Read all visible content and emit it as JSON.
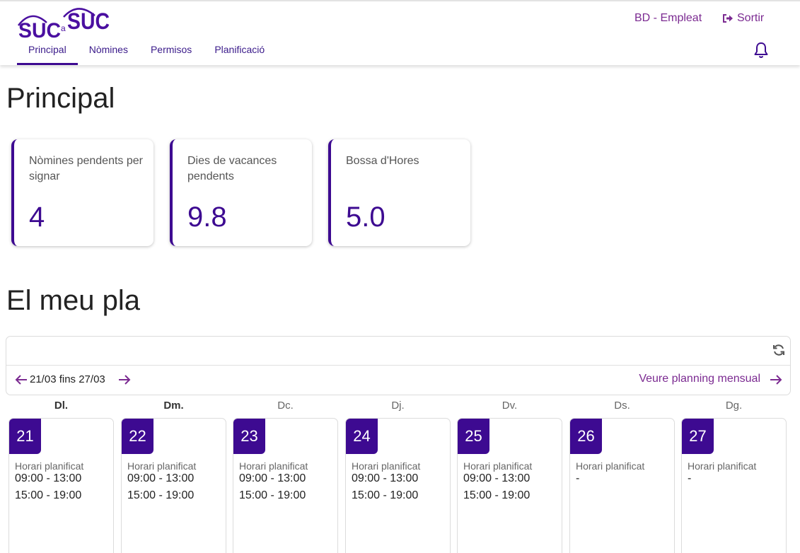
{
  "header": {
    "logo_text_small": "SUC",
    "logo_text_connector": "a",
    "logo_text_large": "SUC",
    "user": "BD - Empleat",
    "logout": "Sortir",
    "nav": [
      {
        "label": "Principal",
        "active": true
      },
      {
        "label": "Nòmines",
        "active": false
      },
      {
        "label": "Permisos",
        "active": false
      },
      {
        "label": "Planificació",
        "active": false
      }
    ]
  },
  "page_title": "Principal",
  "cards": [
    {
      "label": "Nòmines pendents per signar",
      "value": "4"
    },
    {
      "label": "Dies de vacances pendents",
      "value": "9.8"
    },
    {
      "label": "Bossa d'Hores",
      "value": "5.0"
    }
  ],
  "planner": {
    "title": "El meu pla",
    "range": "21/03 fins 27/03",
    "monthly_link": "Veure planning mensual",
    "days": [
      {
        "name": "Dl.",
        "num": "21",
        "label": "Horari planificat",
        "slots": [
          "09:00 - 13:00",
          "15:00 - 19:00"
        ],
        "strong": true
      },
      {
        "name": "Dm.",
        "num": "22",
        "label": "Horari planificat",
        "slots": [
          "09:00 - 13:00",
          "15:00 - 19:00"
        ],
        "strong": true
      },
      {
        "name": "Dc.",
        "num": "23",
        "label": "Horari planificat",
        "slots": [
          "09:00 - 13:00",
          "15:00 - 19:00"
        ],
        "strong": false
      },
      {
        "name": "Dj.",
        "num": "24",
        "label": "Horari planificat",
        "slots": [
          "09:00 - 13:00",
          "15:00 - 19:00"
        ],
        "strong": false
      },
      {
        "name": "Dv.",
        "num": "25",
        "label": "Horari planificat",
        "slots": [
          "09:00 - 13:00",
          "15:00 - 19:00"
        ],
        "strong": false
      },
      {
        "name": "Ds.",
        "num": "26",
        "label": "Horari planificat",
        "slots": [
          "-"
        ],
        "strong": false
      },
      {
        "name": "Dg.",
        "num": "27",
        "label": "Horari planificat",
        "slots": [
          "-"
        ],
        "strong": false
      }
    ]
  },
  "colors": {
    "accent": "#3d0a91",
    "link": "#7b2a91"
  }
}
